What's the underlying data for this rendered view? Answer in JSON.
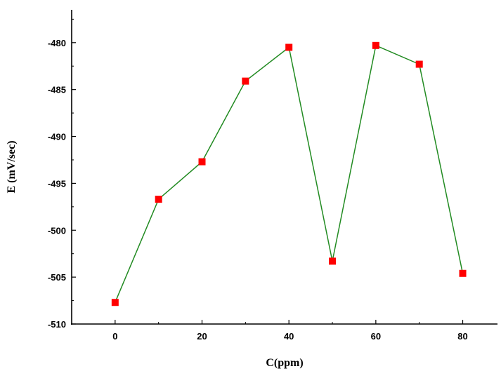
{
  "chart_data": {
    "type": "line",
    "title": "",
    "xlabel": "C(ppm)",
    "ylabel": "E (mV/sec)",
    "xlim": [
      -10,
      88
    ],
    "ylim": [
      -510,
      -476.5
    ],
    "xticks": [
      0,
      20,
      40,
      60,
      80
    ],
    "yticks": [
      -510,
      -505,
      -500,
      -495,
      -490,
      -485,
      -480
    ],
    "x_minor_step": 10,
    "y_minor_step": 2.5,
    "grid": false,
    "legend": "none",
    "series": [
      {
        "x": [
          0,
          10,
          20,
          30,
          40,
          50,
          60,
          70,
          80
        ],
        "y": [
          -507.7,
          -496.7,
          -492.7,
          -484.1,
          -480.5,
          -503.3,
          -480.3,
          -482.3,
          -504.6
        ],
        "line_color": "#228B22",
        "marker": "square",
        "marker_color": "#FF0000"
      }
    ]
  }
}
